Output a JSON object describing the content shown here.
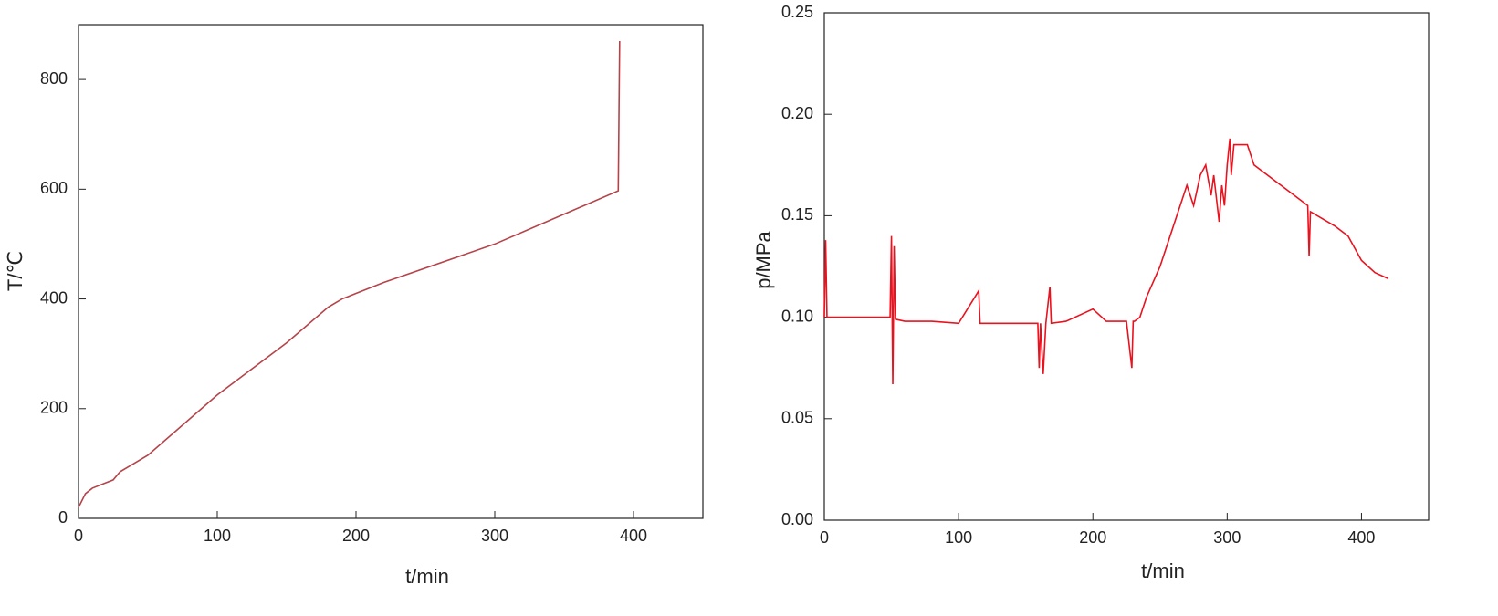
{
  "chart_data": [
    {
      "type": "line",
      "xlabel": "t/min",
      "ylabel": "T/℃",
      "x": [
        0,
        2,
        5,
        10,
        20,
        25,
        30,
        50,
        100,
        150,
        180,
        190,
        200,
        220,
        300,
        389,
        390
      ],
      "series": [
        {
          "color": "#b5444a",
          "values": [
            20,
            30,
            45,
            55,
            65,
            70,
            85,
            115,
            225,
            320,
            385,
            400,
            410,
            430,
            500,
            597,
            870
          ]
        }
      ],
      "xlim": [
        0,
        450
      ],
      "ylim": [
        0,
        900
      ],
      "xticks": [
        0,
        100,
        200,
        300,
        400
      ],
      "yticks": [
        0,
        200,
        400,
        600,
        800
      ]
    },
    {
      "type": "line",
      "xlabel": "t/min",
      "ylabel": "p/MPa",
      "x": [
        0,
        1,
        2,
        5,
        20,
        40,
        49,
        50,
        51,
        52,
        53,
        60,
        80,
        100,
        115,
        116,
        117,
        140,
        159,
        160,
        161,
        163,
        165,
        168,
        169,
        180,
        200,
        210,
        225,
        229,
        230,
        231,
        235,
        240,
        250,
        260,
        270,
        275,
        280,
        284,
        288,
        290,
        294,
        296,
        298,
        300,
        302,
        303,
        305,
        310,
        315,
        320,
        340,
        360,
        361,
        362,
        380,
        390,
        400,
        410,
        420
      ],
      "series": [
        {
          "color": "#e8131f",
          "values": [
            0.1,
            0.138,
            0.1,
            0.1,
            0.1,
            0.1,
            0.1,
            0.14,
            0.067,
            0.135,
            0.099,
            0.098,
            0.098,
            0.097,
            0.113,
            0.097,
            0.097,
            0.097,
            0.097,
            0.075,
            0.097,
            0.072,
            0.097,
            0.115,
            0.097,
            0.098,
            0.104,
            0.098,
            0.098,
            0.075,
            0.098,
            0.098,
            0.1,
            0.11,
            0.125,
            0.145,
            0.165,
            0.155,
            0.17,
            0.175,
            0.16,
            0.17,
            0.147,
            0.165,
            0.155,
            0.175,
            0.188,
            0.17,
            0.185,
            0.185,
            0.185,
            0.175,
            0.165,
            0.155,
            0.13,
            0.152,
            0.145,
            0.14,
            0.128,
            0.122,
            0.119
          ]
        }
      ],
      "xlim": [
        0,
        450
      ],
      "ylim": [
        0,
        0.25
      ],
      "xticks": [
        0,
        100,
        200,
        300,
        400
      ],
      "yticks": [
        {
          "value": 0,
          "label": "0.00"
        },
        0.05,
        {
          "value": 0.1,
          "label": "0.10"
        },
        0.15,
        {
          "value": 0.2,
          "label": "0.20"
        },
        0.25
      ]
    }
  ]
}
